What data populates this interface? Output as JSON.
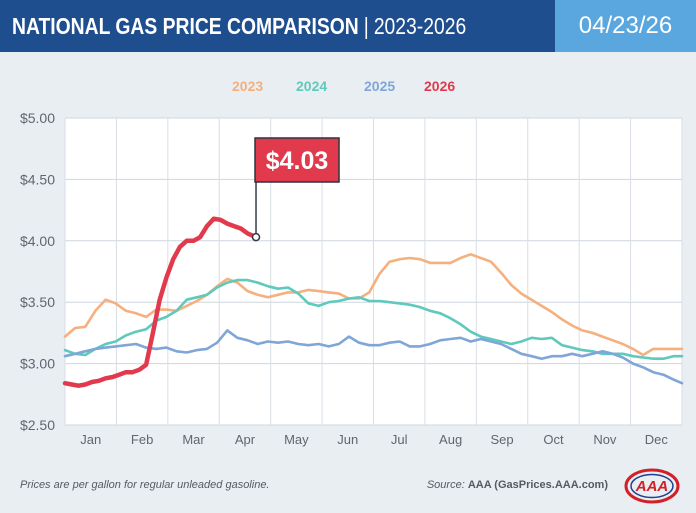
{
  "header": {
    "title_bold": "NATIONAL GAS PRICE COMPARISON",
    "divider": "|",
    "title_years": "2023-2026",
    "date": "04/23/26"
  },
  "footer": {
    "note": "Prices are per gallon for regular unleaded gasoline.",
    "source_prefix": "Source: ",
    "source_name": "AAA (GasPrices.AAA.com)"
  },
  "logo": {
    "text": "AAA",
    "color": "#d31f26"
  },
  "colors": {
    "2023": "#f5b07e",
    "2024": "#5fc9bc",
    "2025": "#7fa6d6",
    "2026": "#e23a4d"
  },
  "chart_data": {
    "type": "line",
    "title": "",
    "xlabel": "",
    "ylabel": "",
    "ylim": [
      2.5,
      5.0
    ],
    "xlim": [
      0,
      365
    ],
    "yticks": [
      5.0,
      4.5,
      4.0,
      3.5,
      3.0,
      2.5
    ],
    "ytick_labels": [
      "$5.00",
      "$4.50",
      "$4.00",
      "$3.50",
      "$3.00",
      "$2.50"
    ],
    "months": [
      "Jan",
      "Feb",
      "Mar",
      "Apr",
      "May",
      "Jun",
      "Jul",
      "Aug",
      "Sep",
      "Oct",
      "Nov",
      "Dec"
    ],
    "grid": true,
    "legend_position": "top",
    "callout": {
      "label": "$4.03",
      "x": 113,
      "y": 4.03,
      "series": "2026"
    },
    "series": [
      {
        "name": "2023",
        "x": [
          0,
          6,
          12,
          18,
          24,
          30,
          36,
          42,
          48,
          54,
          60,
          66,
          72,
          78,
          84,
          90,
          96,
          102,
          108,
          114,
          120,
          126,
          132,
          138,
          144,
          150,
          156,
          162,
          168,
          174,
          180,
          186,
          192,
          198,
          204,
          210,
          216,
          222,
          228,
          234,
          240,
          246,
          252,
          258,
          264,
          270,
          276,
          282,
          288,
          294,
          300,
          306,
          312,
          318,
          324,
          330,
          336,
          342,
          348,
          354,
          360,
          365
        ],
        "y": [
          3.22,
          3.29,
          3.3,
          3.43,
          3.52,
          3.49,
          3.43,
          3.41,
          3.38,
          3.44,
          3.44,
          3.43,
          3.47,
          3.51,
          3.56,
          3.63,
          3.69,
          3.66,
          3.59,
          3.56,
          3.54,
          3.56,
          3.58,
          3.58,
          3.6,
          3.59,
          3.58,
          3.57,
          3.53,
          3.53,
          3.58,
          3.73,
          3.83,
          3.85,
          3.86,
          3.85,
          3.82,
          3.82,
          3.82,
          3.86,
          3.89,
          3.86,
          3.83,
          3.74,
          3.64,
          3.57,
          3.52,
          3.47,
          3.42,
          3.36,
          3.31,
          3.27,
          3.25,
          3.22,
          3.19,
          3.16,
          3.12,
          3.07,
          3.12,
          3.12,
          3.12,
          3.12
        ]
      },
      {
        "name": "2024",
        "x": [
          0,
          6,
          12,
          18,
          24,
          30,
          36,
          42,
          48,
          54,
          60,
          66,
          72,
          78,
          84,
          90,
          96,
          102,
          108,
          114,
          120,
          126,
          132,
          138,
          144,
          150,
          156,
          162,
          168,
          174,
          180,
          186,
          192,
          198,
          204,
          210,
          216,
          222,
          228,
          234,
          240,
          246,
          252,
          258,
          264,
          270,
          276,
          282,
          288,
          294,
          300,
          306,
          312,
          318,
          324,
          330,
          336,
          342,
          348,
          354,
          360,
          365
        ],
        "y": [
          3.11,
          3.08,
          3.07,
          3.12,
          3.16,
          3.18,
          3.23,
          3.26,
          3.28,
          3.35,
          3.38,
          3.43,
          3.52,
          3.54,
          3.56,
          3.62,
          3.66,
          3.68,
          3.68,
          3.66,
          3.63,
          3.61,
          3.62,
          3.57,
          3.49,
          3.47,
          3.5,
          3.51,
          3.53,
          3.54,
          3.51,
          3.51,
          3.5,
          3.49,
          3.48,
          3.46,
          3.43,
          3.41,
          3.37,
          3.32,
          3.26,
          3.22,
          3.2,
          3.18,
          3.16,
          3.18,
          3.21,
          3.2,
          3.21,
          3.15,
          3.13,
          3.11,
          3.1,
          3.08,
          3.08,
          3.08,
          3.06,
          3.05,
          3.04,
          3.04,
          3.06,
          3.06
        ]
      },
      {
        "name": "2025",
        "x": [
          0,
          6,
          12,
          18,
          24,
          30,
          36,
          42,
          48,
          54,
          60,
          66,
          72,
          78,
          84,
          90,
          96,
          102,
          108,
          114,
          120,
          126,
          132,
          138,
          144,
          150,
          156,
          162,
          168,
          174,
          180,
          186,
          192,
          198,
          204,
          210,
          216,
          222,
          228,
          234,
          240,
          246,
          252,
          258,
          264,
          270,
          276,
          282,
          288,
          294,
          300,
          306,
          312,
          318,
          324,
          330,
          336,
          342,
          348,
          354,
          360,
          365
        ],
        "y": [
          3.06,
          3.08,
          3.1,
          3.12,
          3.13,
          3.14,
          3.15,
          3.16,
          3.13,
          3.12,
          3.13,
          3.1,
          3.09,
          3.11,
          3.12,
          3.17,
          3.27,
          3.21,
          3.19,
          3.16,
          3.18,
          3.17,
          3.18,
          3.16,
          3.15,
          3.16,
          3.14,
          3.16,
          3.22,
          3.17,
          3.15,
          3.15,
          3.17,
          3.18,
          3.14,
          3.14,
          3.16,
          3.19,
          3.2,
          3.21,
          3.18,
          3.2,
          3.18,
          3.16,
          3.12,
          3.08,
          3.06,
          3.04,
          3.06,
          3.06,
          3.08,
          3.06,
          3.08,
          3.1,
          3.08,
          3.05,
          3.0,
          2.97,
          2.93,
          2.91,
          2.87,
          2.84
        ]
      },
      {
        "name": "2026",
        "x": [
          0,
          4,
          8,
          12,
          16,
          20,
          24,
          28,
          32,
          36,
          40,
          44,
          48,
          52,
          56,
          60,
          64,
          68,
          72,
          76,
          80,
          84,
          88,
          92,
          96,
          100,
          104,
          108,
          113
        ],
        "y": [
          2.84,
          2.83,
          2.82,
          2.83,
          2.85,
          2.86,
          2.88,
          2.89,
          2.91,
          2.93,
          2.93,
          2.95,
          2.99,
          3.25,
          3.52,
          3.7,
          3.85,
          3.95,
          4.0,
          4.0,
          4.03,
          4.12,
          4.18,
          4.17,
          4.14,
          4.12,
          4.1,
          4.06,
          4.03
        ]
      }
    ]
  }
}
